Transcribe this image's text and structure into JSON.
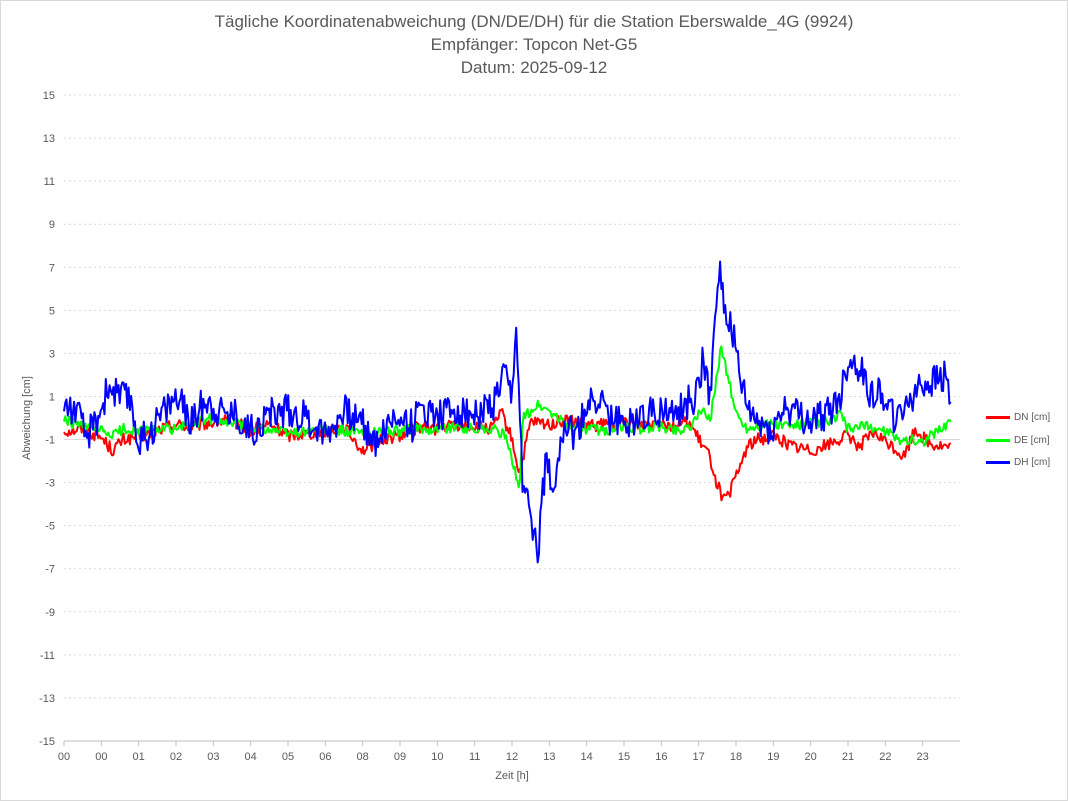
{
  "chart_data": {
    "type": "line",
    "title": "Tägliche Koordinatenabweichung (DN/DE/DH) für die Station Eberswalde_4G (9924)",
    "subtitle1": "Empfänger: Topcon Net-G5",
    "subtitle2": "Datum: 2025-09-12",
    "xlabel": "Zeit [h]",
    "ylabel": "Abweichung [cm]",
    "ylim": [
      -15,
      15
    ],
    "yticks": [
      "15",
      "13",
      "11",
      "9",
      "7",
      "5",
      "3",
      "1",
      "-1",
      "-3",
      "-5",
      "-7",
      "-9",
      "-11",
      "-13",
      "-15"
    ],
    "xlim": [
      0,
      24
    ],
    "xticks": [
      "00",
      "00",
      "01",
      "02",
      "03",
      "04",
      "05",
      "06",
      "08",
      "09",
      "10",
      "11",
      "12",
      "13",
      "14",
      "15",
      "16",
      "17",
      "18",
      "19",
      "20",
      "21",
      "22",
      "23"
    ],
    "grid": true,
    "legend_position": "right",
    "series": [
      {
        "name": "DN [cm]",
        "color": "#ff0000",
        "anchors": [
          [
            0,
            -0.6
          ],
          [
            0.5,
            -0.5
          ],
          [
            1,
            -0.9
          ],
          [
            1.3,
            -1.5
          ],
          [
            1.6,
            -1.0
          ],
          [
            2.2,
            -0.8
          ],
          [
            2.6,
            -0.5
          ],
          [
            3.0,
            -0.3
          ],
          [
            3.4,
            -0.4
          ],
          [
            4.0,
            -0.2
          ],
          [
            4.5,
            -0.1
          ],
          [
            5.0,
            -0.6
          ],
          [
            5.5,
            -0.3
          ],
          [
            6.0,
            -0.8
          ],
          [
            6.5,
            -0.7
          ],
          [
            7.0,
            -0.6
          ],
          [
            7.5,
            -0.4
          ],
          [
            8.0,
            -1.5
          ],
          [
            8.5,
            -1.0
          ],
          [
            9.0,
            -0.8
          ],
          [
            9.5,
            -0.4
          ],
          [
            10.0,
            -0.5
          ],
          [
            10.5,
            -0.3
          ],
          [
            11.0,
            -0.4
          ],
          [
            11.5,
            -0.5
          ],
          [
            11.7,
            0.3
          ],
          [
            12.0,
            -1.0
          ],
          [
            12.2,
            -2.6
          ],
          [
            12.5,
            -0.2
          ],
          [
            13.0,
            -0.3
          ],
          [
            13.5,
            -0.1
          ],
          [
            14.0,
            -0.4
          ],
          [
            14.5,
            -0.3
          ],
          [
            15.0,
            -0.2
          ],
          [
            15.5,
            -0.3
          ],
          [
            16.0,
            -0.1
          ],
          [
            16.3,
            -0.4
          ],
          [
            16.7,
            -0.1
          ],
          [
            17.0,
            -1.0
          ],
          [
            17.3,
            -1.8
          ],
          [
            17.5,
            -3.1
          ],
          [
            17.7,
            -3.9
          ],
          [
            17.9,
            -3.2
          ],
          [
            18.1,
            -2.3
          ],
          [
            18.3,
            -1.3
          ],
          [
            18.6,
            -1.0
          ],
          [
            19.0,
            -0.8
          ],
          [
            19.5,
            -1.3
          ],
          [
            20.0,
            -1.5
          ],
          [
            20.5,
            -1.2
          ],
          [
            21.0,
            -0.8
          ],
          [
            21.3,
            -1.3
          ],
          [
            21.7,
            -0.7
          ],
          [
            22.1,
            -1.2
          ],
          [
            22.5,
            -1.8
          ],
          [
            22.8,
            -0.5
          ],
          [
            23.2,
            -1.2
          ],
          [
            23.5,
            -1.3
          ],
          [
            23.75,
            -1.4
          ]
        ],
        "noise": 0.3
      },
      {
        "name": "DE [cm]",
        "color": "#00ff00",
        "anchors": [
          [
            0,
            -0.1
          ],
          [
            0.5,
            -0.4
          ],
          [
            1,
            -0.6
          ],
          [
            1.3,
            -0.8
          ],
          [
            1.6,
            -0.5
          ],
          [
            2.2,
            -0.6
          ],
          [
            2.6,
            -0.5
          ],
          [
            3.0,
            -0.5
          ],
          [
            3.4,
            -0.3
          ],
          [
            4.0,
            0.0
          ],
          [
            4.5,
            -0.2
          ],
          [
            5.0,
            -0.4
          ],
          [
            5.5,
            -0.5
          ],
          [
            6.0,
            -0.7
          ],
          [
            6.5,
            -0.6
          ],
          [
            7.0,
            -0.5
          ],
          [
            7.5,
            -0.6
          ],
          [
            8.0,
            -0.7
          ],
          [
            8.5,
            -0.6
          ],
          [
            9.0,
            -0.6
          ],
          [
            9.5,
            -0.5
          ],
          [
            10.0,
            -0.5
          ],
          [
            10.5,
            -0.4
          ],
          [
            11.0,
            -0.5
          ],
          [
            11.5,
            -0.5
          ],
          [
            11.8,
            -0.8
          ],
          [
            12.0,
            -2.0
          ],
          [
            12.2,
            -3.1
          ],
          [
            12.3,
            0.0
          ],
          [
            12.7,
            0.6
          ],
          [
            13.0,
            0.3
          ],
          [
            13.5,
            -0.4
          ],
          [
            14.0,
            -0.5
          ],
          [
            14.5,
            -0.6
          ],
          [
            15.0,
            -0.4
          ],
          [
            15.5,
            -0.5
          ],
          [
            16.0,
            -0.4
          ],
          [
            16.5,
            -0.6
          ],
          [
            16.9,
            -0.2
          ],
          [
            17.1,
            0.5
          ],
          [
            17.3,
            -0.2
          ],
          [
            17.6,
            3.3
          ],
          [
            17.8,
            1.8
          ],
          [
            18.0,
            0.2
          ],
          [
            18.3,
            -0.5
          ],
          [
            18.7,
            -0.3
          ],
          [
            19.0,
            -0.3
          ],
          [
            19.5,
            -0.4
          ],
          [
            20.0,
            -0.2
          ],
          [
            20.5,
            -0.2
          ],
          [
            20.8,
            0.2
          ],
          [
            21.0,
            -0.5
          ],
          [
            21.5,
            -0.4
          ],
          [
            22.0,
            -0.6
          ],
          [
            22.3,
            -1.0
          ],
          [
            22.6,
            -1.0
          ],
          [
            23.0,
            -1.1
          ],
          [
            23.3,
            -0.7
          ],
          [
            23.6,
            -0.4
          ],
          [
            23.75,
            0.0
          ]
        ],
        "noise": 0.25
      },
      {
        "name": "DH [cm]",
        "color": "#0000ff",
        "anchors": [
          [
            0,
            0.6
          ],
          [
            0.3,
            0.4
          ],
          [
            0.6,
            -0.9
          ],
          [
            0.9,
            0.0
          ],
          [
            1.2,
            1.5
          ],
          [
            1.5,
            1.0
          ],
          [
            1.8,
            0.8
          ],
          [
            2.0,
            -1.2
          ],
          [
            2.3,
            -0.6
          ],
          [
            2.7,
            0.4
          ],
          [
            3.0,
            1.0
          ],
          [
            3.4,
            -0.2
          ],
          [
            3.8,
            0.9
          ],
          [
            4.2,
            0.3
          ],
          [
            4.6,
            0.2
          ],
          [
            5.0,
            -0.6
          ],
          [
            5.5,
            0.2
          ],
          [
            6.0,
            0.4
          ],
          [
            6.5,
            0.0
          ],
          [
            7.0,
            -0.7
          ],
          [
            7.5,
            0.3
          ],
          [
            8.0,
            -0.2
          ],
          [
            8.3,
            -1.1
          ],
          [
            8.6,
            -0.5
          ],
          [
            9.0,
            0.2
          ],
          [
            9.3,
            -0.4
          ],
          [
            9.6,
            0.5
          ],
          [
            10.0,
            0.2
          ],
          [
            10.5,
            0.4
          ],
          [
            11.0,
            0.1
          ],
          [
            11.5,
            0.5
          ],
          [
            11.8,
            2.0
          ],
          [
            12.0,
            0.6
          ],
          [
            12.1,
            4.5
          ],
          [
            12.3,
            -3.5
          ],
          [
            12.5,
            -4.5
          ],
          [
            12.7,
            -6.0
          ],
          [
            12.9,
            -2.0
          ],
          [
            13.1,
            -3.0
          ],
          [
            13.4,
            -0.2
          ],
          [
            13.7,
            -1.0
          ],
          [
            14.0,
            0.5
          ],
          [
            14.3,
            1.0
          ],
          [
            14.6,
            0.0
          ],
          [
            15.0,
            -0.3
          ],
          [
            15.5,
            0.2
          ],
          [
            16.0,
            0.4
          ],
          [
            16.3,
            0.0
          ],
          [
            16.6,
            0.5
          ],
          [
            16.9,
            1.0
          ],
          [
            17.1,
            2.5
          ],
          [
            17.3,
            1.2
          ],
          [
            17.55,
            7.2
          ],
          [
            17.7,
            4.8
          ],
          [
            17.9,
            4.2
          ],
          [
            18.1,
            1.8
          ],
          [
            18.3,
            0.4
          ],
          [
            18.6,
            -0.3
          ],
          [
            19.0,
            -0.5
          ],
          [
            19.3,
            0.5
          ],
          [
            19.6,
            0.2
          ],
          [
            20.0,
            -0.2
          ],
          [
            20.5,
            0.3
          ],
          [
            20.8,
            1.0
          ],
          [
            21.0,
            2.7
          ],
          [
            21.3,
            2.4
          ],
          [
            21.6,
            1.2
          ],
          [
            22.0,
            1.1
          ],
          [
            22.3,
            -0.3
          ],
          [
            22.6,
            0.9
          ],
          [
            23.0,
            1.6
          ],
          [
            23.3,
            1.7
          ],
          [
            23.6,
            1.9
          ],
          [
            23.75,
            0.9
          ]
        ],
        "noise": 0.8
      }
    ]
  }
}
